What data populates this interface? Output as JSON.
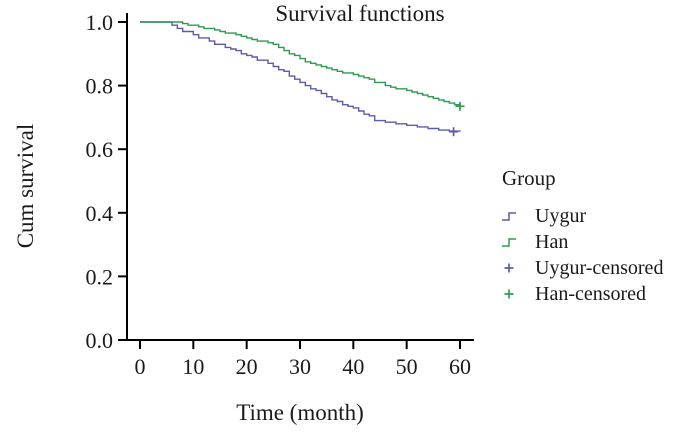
{
  "chart_data": {
    "type": "line",
    "variant": "kaplan_meier_step",
    "title": "Survival functions",
    "xlabel": "Time (month)",
    "ylabel": "Cum survival",
    "xlim": [
      0,
      60
    ],
    "ylim": [
      0.0,
      1.0
    ],
    "x_ticks": [
      0,
      10,
      20,
      30,
      40,
      50,
      60
    ],
    "y_ticks": [
      0.0,
      0.2,
      0.4,
      0.6,
      0.8,
      1.0
    ],
    "y_tick_labels": [
      "0.0",
      "0.2",
      "0.4",
      "0.6",
      "0.8",
      "1.0"
    ],
    "grid": false,
    "axis_color": "#000000",
    "legend": {
      "title": "Group",
      "position": "right",
      "items": [
        {
          "label": "Uygur",
          "symbol": "step-line",
          "color": "#5c5cab"
        },
        {
          "label": "Han",
          "symbol": "step-line",
          "color": "#2f9b51"
        },
        {
          "label": "Uygur-censored",
          "symbol": "plus",
          "color": "#5c5cab"
        },
        {
          "label": "Han-censored",
          "symbol": "plus",
          "color": "#2f9b51"
        }
      ]
    },
    "series": [
      {
        "name": "Uygur",
        "color": "#5c5cab",
        "step": true,
        "points": [
          [
            0,
            1.0
          ],
          [
            6,
            0.99
          ],
          [
            7,
            0.98
          ],
          [
            8,
            0.97
          ],
          [
            10,
            0.96
          ],
          [
            11,
            0.95
          ],
          [
            13,
            0.94
          ],
          [
            14,
            0.93
          ],
          [
            16,
            0.92
          ],
          [
            17,
            0.915
          ],
          [
            18,
            0.91
          ],
          [
            19,
            0.9
          ],
          [
            20,
            0.895
          ],
          [
            21,
            0.89
          ],
          [
            22,
            0.88
          ],
          [
            24,
            0.87
          ],
          [
            25,
            0.86
          ],
          [
            26,
            0.85
          ],
          [
            27,
            0.845
          ],
          [
            28,
            0.83
          ],
          [
            29,
            0.82
          ],
          [
            30,
            0.81
          ],
          [
            31,
            0.8
          ],
          [
            32,
            0.79
          ],
          [
            33,
            0.785
          ],
          [
            34,
            0.775
          ],
          [
            35,
            0.765
          ],
          [
            36,
            0.755
          ],
          [
            37,
            0.75
          ],
          [
            38,
            0.74
          ],
          [
            39,
            0.735
          ],
          [
            40,
            0.73
          ],
          [
            41,
            0.72
          ],
          [
            42,
            0.71
          ],
          [
            43,
            0.705
          ],
          [
            44,
            0.69
          ],
          [
            46,
            0.685
          ],
          [
            48,
            0.68
          ],
          [
            50,
            0.675
          ],
          [
            52,
            0.67
          ],
          [
            54,
            0.665
          ],
          [
            56,
            0.66
          ],
          [
            58,
            0.657
          ],
          [
            60,
            0.655
          ]
        ],
        "censored_points": [
          [
            58.8,
            0.655
          ]
        ]
      },
      {
        "name": "Han",
        "color": "#2f9b51",
        "step": true,
        "points": [
          [
            0,
            1.0
          ],
          [
            8,
            0.995
          ],
          [
            9,
            0.99
          ],
          [
            11,
            0.985
          ],
          [
            12,
            0.98
          ],
          [
            14,
            0.975
          ],
          [
            15,
            0.97
          ],
          [
            16,
            0.965
          ],
          [
            18,
            0.96
          ],
          [
            19,
            0.955
          ],
          [
            20,
            0.95
          ],
          [
            21,
            0.945
          ],
          [
            22,
            0.94
          ],
          [
            24,
            0.935
          ],
          [
            25,
            0.93
          ],
          [
            26,
            0.92
          ],
          [
            27,
            0.91
          ],
          [
            28,
            0.9
          ],
          [
            29,
            0.895
          ],
          [
            30,
            0.885
          ],
          [
            31,
            0.875
          ],
          [
            32,
            0.87
          ],
          [
            33,
            0.865
          ],
          [
            34,
            0.86
          ],
          [
            35,
            0.855
          ],
          [
            36,
            0.85
          ],
          [
            37,
            0.845
          ],
          [
            38,
            0.84
          ],
          [
            40,
            0.835
          ],
          [
            41,
            0.83
          ],
          [
            42,
            0.825
          ],
          [
            43,
            0.82
          ],
          [
            44,
            0.81
          ],
          [
            46,
            0.8
          ],
          [
            47,
            0.795
          ],
          [
            48,
            0.79
          ],
          [
            50,
            0.785
          ],
          [
            51,
            0.78
          ],
          [
            52,
            0.775
          ],
          [
            53,
            0.77
          ],
          [
            54,
            0.765
          ],
          [
            55,
            0.76
          ],
          [
            56,
            0.755
          ],
          [
            57,
            0.75
          ],
          [
            58,
            0.745
          ],
          [
            59,
            0.74
          ],
          [
            60,
            0.735
          ]
        ],
        "censored_points": [
          [
            60,
            0.735
          ]
        ]
      }
    ]
  }
}
